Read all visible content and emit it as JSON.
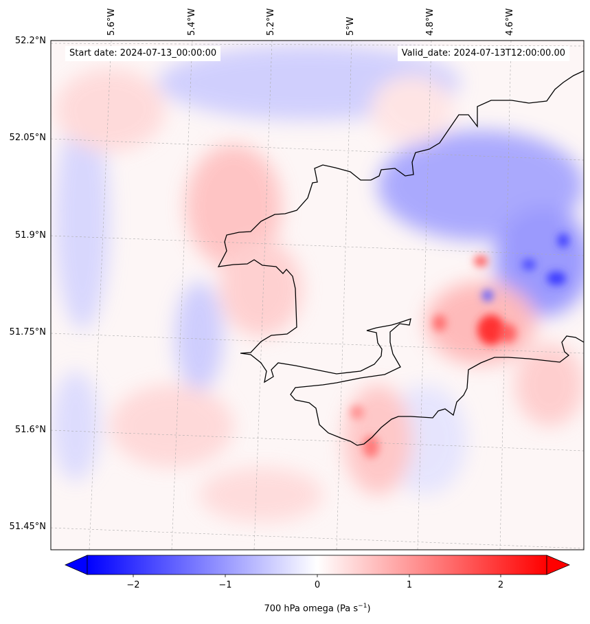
{
  "header": {
    "start_date": "Start date: 2024-07-13_00:00:00",
    "valid_date": "Valid_date: 2024-07-13T12:00:00.00"
  },
  "axes": {
    "lat_labels": [
      "52.2°N",
      "52.05°N",
      "51.9°N",
      "51.75°N",
      "51.6°N",
      "51.45°N"
    ],
    "lon_labels": [
      "5.6°W",
      "5.4°W",
      "5.2°W",
      "5°W",
      "4.8°W",
      "4.6°W"
    ]
  },
  "colorbar": {
    "title": "700 hPa omega (Pa s",
    "title_sup": "−1",
    "title_end": ")",
    "ticks": [
      "−2",
      "−1",
      "0",
      "1",
      "2"
    ],
    "range": [
      -2.5,
      2.5
    ],
    "extend": "both",
    "colormap": "bwr",
    "colors": {
      "low": "#0000ff",
      "mid": "#ffffff",
      "high": "#ff0000"
    }
  },
  "map": {
    "field": "700 hPa omega",
    "gridlines": true,
    "coastline_color": "#000000"
  }
}
